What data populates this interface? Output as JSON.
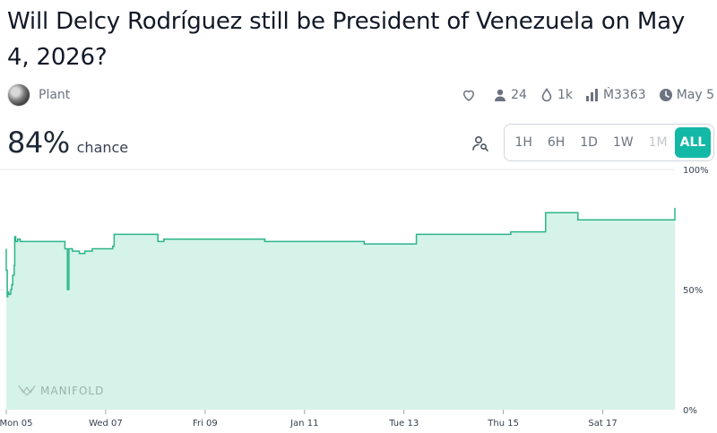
{
  "market": {
    "title": "Will Delcy Rodríguez still be President of Venezuela on May 4, 2026?",
    "creator": "Plant"
  },
  "stats": {
    "traders": "24",
    "liquidity": "1k",
    "volume": "Ṁ3363",
    "close_date": "May 5"
  },
  "probability": {
    "value": "84%",
    "label": "chance"
  },
  "time_ranges": [
    {
      "label": "1H",
      "state": "enabled"
    },
    {
      "label": "6H",
      "state": "enabled"
    },
    {
      "label": "1D",
      "state": "enabled"
    },
    {
      "label": "1W",
      "state": "enabled"
    },
    {
      "label": "1M",
      "state": "disabled"
    },
    {
      "label": "ALL",
      "state": "active"
    }
  ],
  "watermark": "MANIFOLD",
  "colors": {
    "accent": "#14b8a6",
    "line": "#2bb58a",
    "fill": "#d5f3e8"
  },
  "chart_data": {
    "type": "area",
    "ylim": [
      0,
      100
    ],
    "y_ticks": [
      "100%",
      "50%",
      "0%"
    ],
    "x_tick_labels": [
      "Mon 05",
      "Wed 07",
      "Fri 09",
      "Jan 11",
      "Tue 13",
      "Thu 15",
      "Sat 17"
    ],
    "x_tick_days": [
      0,
      2,
      4,
      6,
      8,
      10,
      12
    ],
    "x_range_days": [
      0,
      13.45
    ],
    "series": [
      {
        "x_days": [
          -0.06,
          -0.03,
          -0.02,
          0.0,
          0.02,
          0.03,
          0.05,
          0.07,
          0.09,
          0.11,
          0.13,
          0.16,
          0.17,
          0.19,
          0.2,
          0.23,
          0.28,
          0.45,
          1.18,
          1.23,
          1.26,
          1.33,
          1.47,
          1.58,
          1.73,
          1.88,
          2.14,
          2.17,
          3.05,
          3.17,
          5.2,
          7.2,
          8.25,
          10.15,
          10.85,
          11.5,
          13.45
        ],
        "y": [
          67,
          65,
          64,
          58,
          47,
          49,
          48,
          48,
          50,
          52,
          56,
          60,
          72,
          70,
          70,
          71,
          70,
          70,
          67,
          50,
          67,
          66,
          65,
          66,
          67,
          67,
          68,
          73,
          70,
          71,
          70,
          69,
          73,
          74,
          82,
          79,
          84
        ]
      }
    ]
  }
}
